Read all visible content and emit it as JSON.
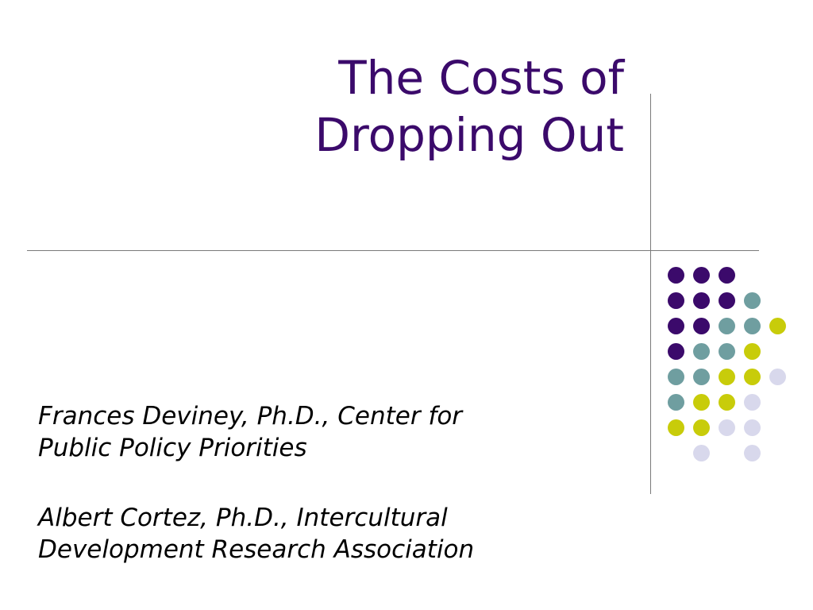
{
  "slide": {
    "title_lines": [
      "The Costs of",
      "Dropping Out"
    ],
    "authors": [
      [
        "Frances Deviney, Ph.D., Center for",
        "Public Policy Priorities"
      ],
      [
        "Albert Cortez, Ph.D., Intercultural",
        "Development Research Association"
      ]
    ]
  },
  "colors": {
    "title": "#3b0a6b",
    "purple": "#3b0a6b",
    "teal": "#6f9ea0",
    "lime": "#c8cc0a",
    "lavender": "#d8d8ec",
    "rule": "#7a7a7a"
  },
  "dot_grid": [
    [
      "purple",
      "purple",
      "purple",
      "",
      ""
    ],
    [
      "purple",
      "purple",
      "purple",
      "teal",
      ""
    ],
    [
      "purple",
      "purple",
      "teal",
      "teal",
      "lime"
    ],
    [
      "purple",
      "teal",
      "teal",
      "lime",
      ""
    ],
    [
      "teal",
      "teal",
      "lime",
      "lime",
      "lavender"
    ],
    [
      "teal",
      "lime",
      "lime",
      "lavender",
      ""
    ],
    [
      "lime",
      "lime",
      "lavender",
      "lavender",
      ""
    ],
    [
      "",
      "lavender",
      "",
      "lavender",
      ""
    ]
  ]
}
